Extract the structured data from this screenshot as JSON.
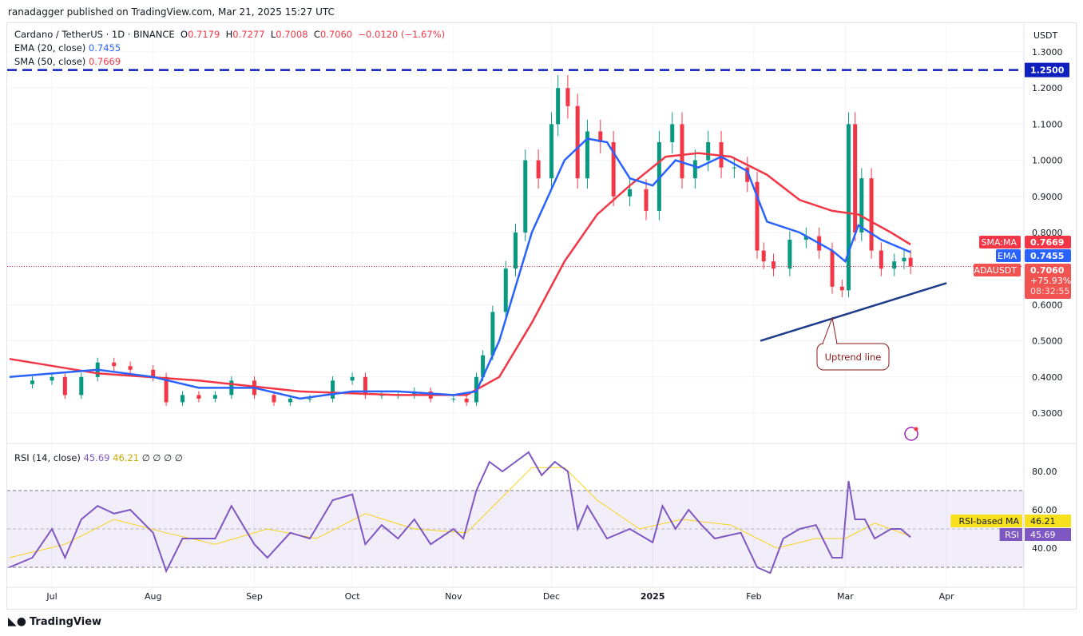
{
  "published": "ranadagger published on TradingView.com, Mar 21, 2025 15:27 UTC",
  "legend": {
    "symbol": "Cardano / TetherUS · 1D · BINANCE",
    "o_label": "O",
    "o": "0.7179",
    "h_label": "H",
    "h": "0.7277",
    "l_label": "L",
    "l": "0.7008",
    "c_label": "C",
    "c": "0.7060",
    "change": "−0.0120 (−1.67%)",
    "ema_label": "EMA (20, close)",
    "ema": "0.7455",
    "sma_label": "SMA (50, close)",
    "sma": "0.7669",
    "rsi_label": "RSI (14, close)",
    "rsi": "45.69",
    "rsi_ma": "46.21",
    "rsi_extra": "∅ ∅ ∅ ∅"
  },
  "brand": "TradingView",
  "chart_data": {
    "type": "candlestick",
    "currency": "USDT",
    "x_ticks": [
      "Jul",
      "Aug",
      "Sep",
      "Oct",
      "Nov",
      "Dec",
      "2025",
      "Feb",
      "Mar",
      "Apr"
    ],
    "y_ticks": [
      "1.3000",
      "1.2000",
      "1.1000",
      "1.0000",
      "0.9000",
      "0.8000",
      "0.6000",
      "0.5000",
      "0.4000",
      "0.3000"
    ],
    "ylim": [
      0.25,
      1.35
    ],
    "colors": {
      "up": "#089981",
      "down": "#f23645",
      "ema": "#2962ff",
      "sma": "#f23645",
      "rsi": "#7e57c2",
      "rsi_ma": "#f7d21c",
      "trend": "#1e3a8a"
    },
    "closes": [
      [
        "2024-06-18",
        0.38
      ],
      [
        "2024-06-25",
        0.39
      ],
      [
        "2024-07-01",
        0.4
      ],
      [
        "2024-07-05",
        0.35
      ],
      [
        "2024-07-10",
        0.4
      ],
      [
        "2024-07-15",
        0.44
      ],
      [
        "2024-07-20",
        0.43
      ],
      [
        "2024-07-25",
        0.42
      ],
      [
        "2024-08-01",
        0.4
      ],
      [
        "2024-08-05",
        0.33
      ],
      [
        "2024-08-10",
        0.35
      ],
      [
        "2024-08-15",
        0.34
      ],
      [
        "2024-08-20",
        0.35
      ],
      [
        "2024-08-25",
        0.39
      ],
      [
        "2024-09-01",
        0.35
      ],
      [
        "2024-09-07",
        0.33
      ],
      [
        "2024-09-12",
        0.34
      ],
      [
        "2024-09-18",
        0.34
      ],
      [
        "2024-09-25",
        0.39
      ],
      [
        "2024-10-01",
        0.4
      ],
      [
        "2024-10-05",
        0.35
      ],
      [
        "2024-10-10",
        0.35
      ],
      [
        "2024-10-15",
        0.35
      ],
      [
        "2024-10-20",
        0.36
      ],
      [
        "2024-10-25",
        0.34
      ],
      [
        "2024-11-01",
        0.34
      ],
      [
        "2024-11-05",
        0.33
      ],
      [
        "2024-11-08",
        0.4
      ],
      [
        "2024-11-10",
        0.46
      ],
      [
        "2024-11-13",
        0.58
      ],
      [
        "2024-11-17",
        0.7
      ],
      [
        "2024-11-20",
        0.8
      ],
      [
        "2024-11-23",
        1.0
      ],
      [
        "2024-11-27",
        0.95
      ],
      [
        "2024-12-01",
        1.1
      ],
      [
        "2024-12-03",
        1.2
      ],
      [
        "2024-12-06",
        1.15
      ],
      [
        "2024-12-09",
        0.95
      ],
      [
        "2024-12-12",
        1.08
      ],
      [
        "2024-12-16",
        1.05
      ],
      [
        "2024-12-20",
        0.9
      ],
      [
        "2024-12-25",
        0.92
      ],
      [
        "2024-12-30",
        0.86
      ],
      [
        "2025-01-03",
        1.05
      ],
      [
        "2025-01-07",
        1.1
      ],
      [
        "2025-01-10",
        0.95
      ],
      [
        "2025-01-14",
        1.0
      ],
      [
        "2025-01-18",
        1.05
      ],
      [
        "2025-01-22",
        0.98
      ],
      [
        "2025-01-26",
        0.98
      ],
      [
        "2025-01-30",
        0.94
      ],
      [
        "2025-02-02",
        0.75
      ],
      [
        "2025-02-04",
        0.72
      ],
      [
        "2025-02-07",
        0.7
      ],
      [
        "2025-02-12",
        0.78
      ],
      [
        "2025-02-17",
        0.79
      ],
      [
        "2025-02-21",
        0.75
      ],
      [
        "2025-02-25",
        0.65
      ],
      [
        "2025-02-28",
        0.64
      ],
      [
        "2025-03-02",
        1.1
      ],
      [
        "2025-03-04",
        0.8
      ],
      [
        "2025-03-06",
        0.95
      ],
      [
        "2025-03-09",
        0.75
      ],
      [
        "2025-03-12",
        0.7
      ],
      [
        "2025-03-16",
        0.72
      ],
      [
        "2025-03-19",
        0.73
      ],
      [
        "2025-03-21",
        0.706
      ]
    ],
    "ema20": [
      [
        "2024-06-18",
        0.4
      ],
      [
        "2024-07-15",
        0.42
      ],
      [
        "2024-08-01",
        0.4
      ],
      [
        "2024-08-15",
        0.37
      ],
      [
        "2024-09-01",
        0.37
      ],
      [
        "2024-09-15",
        0.34
      ],
      [
        "2024-10-01",
        0.36
      ],
      [
        "2024-10-15",
        0.36
      ],
      [
        "2024-11-01",
        0.35
      ],
      [
        "2024-11-08",
        0.36
      ],
      [
        "2024-11-15",
        0.5
      ],
      [
        "2024-11-25",
        0.8
      ],
      [
        "2024-12-05",
        1.0
      ],
      [
        "2024-12-12",
        1.06
      ],
      [
        "2024-12-18",
        1.05
      ],
      [
        "2024-12-25",
        0.95
      ],
      [
        "2025-01-01",
        0.93
      ],
      [
        "2025-01-08",
        1.0
      ],
      [
        "2025-01-15",
        0.98
      ],
      [
        "2025-01-22",
        1.01
      ],
      [
        "2025-01-30",
        0.97
      ],
      [
        "2025-02-05",
        0.83
      ],
      [
        "2025-02-15",
        0.8
      ],
      [
        "2025-02-25",
        0.75
      ],
      [
        "2025-03-01",
        0.72
      ],
      [
        "2025-03-05",
        0.82
      ],
      [
        "2025-03-12",
        0.78
      ],
      [
        "2025-03-21",
        0.7455
      ]
    ],
    "sma50": [
      [
        "2024-06-18",
        0.45
      ],
      [
        "2024-07-15",
        0.41
      ],
      [
        "2024-08-15",
        0.39
      ],
      [
        "2024-09-15",
        0.36
      ],
      [
        "2024-10-15",
        0.35
      ],
      [
        "2024-11-05",
        0.35
      ],
      [
        "2024-11-15",
        0.4
      ],
      [
        "2024-11-25",
        0.55
      ],
      [
        "2024-12-05",
        0.72
      ],
      [
        "2024-12-15",
        0.85
      ],
      [
        "2024-12-25",
        0.93
      ],
      [
        "2025-01-05",
        1.01
      ],
      [
        "2025-01-15",
        1.02
      ],
      [
        "2025-01-25",
        1.01
      ],
      [
        "2025-02-05",
        0.96
      ],
      [
        "2025-02-15",
        0.89
      ],
      [
        "2025-02-25",
        0.86
      ],
      [
        "2025-03-05",
        0.85
      ],
      [
        "2025-03-15",
        0.8
      ],
      [
        "2025-03-21",
        0.7669
      ]
    ],
    "resistance": {
      "value": 1.25,
      "label": "1.2500"
    },
    "uptrend": {
      "from": [
        "2025-02-03",
        0.5
      ],
      "to": [
        "2025-04-01",
        0.66
      ],
      "label": "Uptrend line"
    },
    "price_labels": [
      {
        "name": "SMA:MA",
        "value": "0.7669",
        "color": "#f23645"
      },
      {
        "name": "EMA",
        "value": "0.7455",
        "color": "#2962ff"
      },
      {
        "name": "ADAUSDT",
        "value": "0.7060",
        "change": "+75.93%",
        "countdown": "08:32:55",
        "color": "#f05350"
      }
    ],
    "rsi": {
      "ylim": [
        20,
        95
      ],
      "bands": [
        30,
        70
      ],
      "y_ticks": [
        "80.00",
        "60.00",
        "40.00"
      ],
      "values": [
        [
          "2024-06-18",
          30
        ],
        [
          "2024-06-25",
          35
        ],
        [
          "2024-07-01",
          50
        ],
        [
          "2024-07-05",
          35
        ],
        [
          "2024-07-10",
          55
        ],
        [
          "2024-07-15",
          62
        ],
        [
          "2024-07-20",
          58
        ],
        [
          "2024-07-25",
          60
        ],
        [
          "2024-08-01",
          48
        ],
        [
          "2024-08-05",
          28
        ],
        [
          "2024-08-10",
          45
        ],
        [
          "2024-08-20",
          45
        ],
        [
          "2024-08-25",
          62
        ],
        [
          "2024-09-01",
          42
        ],
        [
          "2024-09-05",
          35
        ],
        [
          "2024-09-12",
          48
        ],
        [
          "2024-09-18",
          45
        ],
        [
          "2024-09-25",
          65
        ],
        [
          "2024-10-01",
          68
        ],
        [
          "2024-10-05",
          42
        ],
        [
          "2024-10-10",
          52
        ],
        [
          "2024-10-15",
          45
        ],
        [
          "2024-10-20",
          55
        ],
        [
          "2024-10-25",
          42
        ],
        [
          "2024-11-01",
          50
        ],
        [
          "2024-11-04",
          45
        ],
        [
          "2024-11-08",
          70
        ],
        [
          "2024-11-12",
          85
        ],
        [
          "2024-11-16",
          80
        ],
        [
          "2024-11-20",
          85
        ],
        [
          "2024-11-24",
          90
        ],
        [
          "2024-11-28",
          78
        ],
        [
          "2024-12-02",
          85
        ],
        [
          "2024-12-06",
          80
        ],
        [
          "2024-12-09",
          50
        ],
        [
          "2024-12-12",
          62
        ],
        [
          "2024-12-18",
          45
        ],
        [
          "2024-12-25",
          50
        ],
        [
          "2025-01-01",
          43
        ],
        [
          "2025-01-04",
          62
        ],
        [
          "2025-01-08",
          50
        ],
        [
          "2025-01-12",
          60
        ],
        [
          "2025-01-16",
          52
        ],
        [
          "2025-01-20",
          45
        ],
        [
          "2025-01-28",
          48
        ],
        [
          "2025-02-02",
          30
        ],
        [
          "2025-02-06",
          27
        ],
        [
          "2025-02-10",
          45
        ],
        [
          "2025-02-15",
          50
        ],
        [
          "2025-02-20",
          52
        ],
        [
          "2025-02-25",
          35
        ],
        [
          "2025-02-28",
          35
        ],
        [
          "2025-03-02",
          75
        ],
        [
          "2025-03-04",
          55
        ],
        [
          "2025-03-07",
          55
        ],
        [
          "2025-03-10",
          45
        ],
        [
          "2025-03-15",
          50
        ],
        [
          "2025-03-18",
          50
        ],
        [
          "2025-03-21",
          45.69
        ]
      ],
      "ma": [
        [
          "2024-06-18",
          35
        ],
        [
          "2024-07-05",
          42
        ],
        [
          "2024-07-20",
          55
        ],
        [
          "2024-08-05",
          48
        ],
        [
          "2024-08-20",
          42
        ],
        [
          "2024-09-05",
          50
        ],
        [
          "2024-09-20",
          45
        ],
        [
          "2024-10-05",
          58
        ],
        [
          "2024-10-20",
          50
        ],
        [
          "2024-11-05",
          48
        ],
        [
          "2024-11-15",
          65
        ],
        [
          "2024-11-25",
          82
        ],
        [
          "2024-12-05",
          82
        ],
        [
          "2024-12-15",
          65
        ],
        [
          "2024-12-28",
          50
        ],
        [
          "2025-01-10",
          55
        ],
        [
          "2025-01-25",
          52
        ],
        [
          "2025-02-08",
          40
        ],
        [
          "2025-02-20",
          45
        ],
        [
          "2025-03-01",
          45
        ],
        [
          "2025-03-10",
          53
        ],
        [
          "2025-03-21",
          46.21
        ]
      ],
      "labels": [
        {
          "name": "RSI-based MA",
          "value": "46.21",
          "color": "#f7e11c"
        },
        {
          "name": "RSI",
          "value": "45.69",
          "color": "#7e57c2"
        }
      ]
    }
  }
}
